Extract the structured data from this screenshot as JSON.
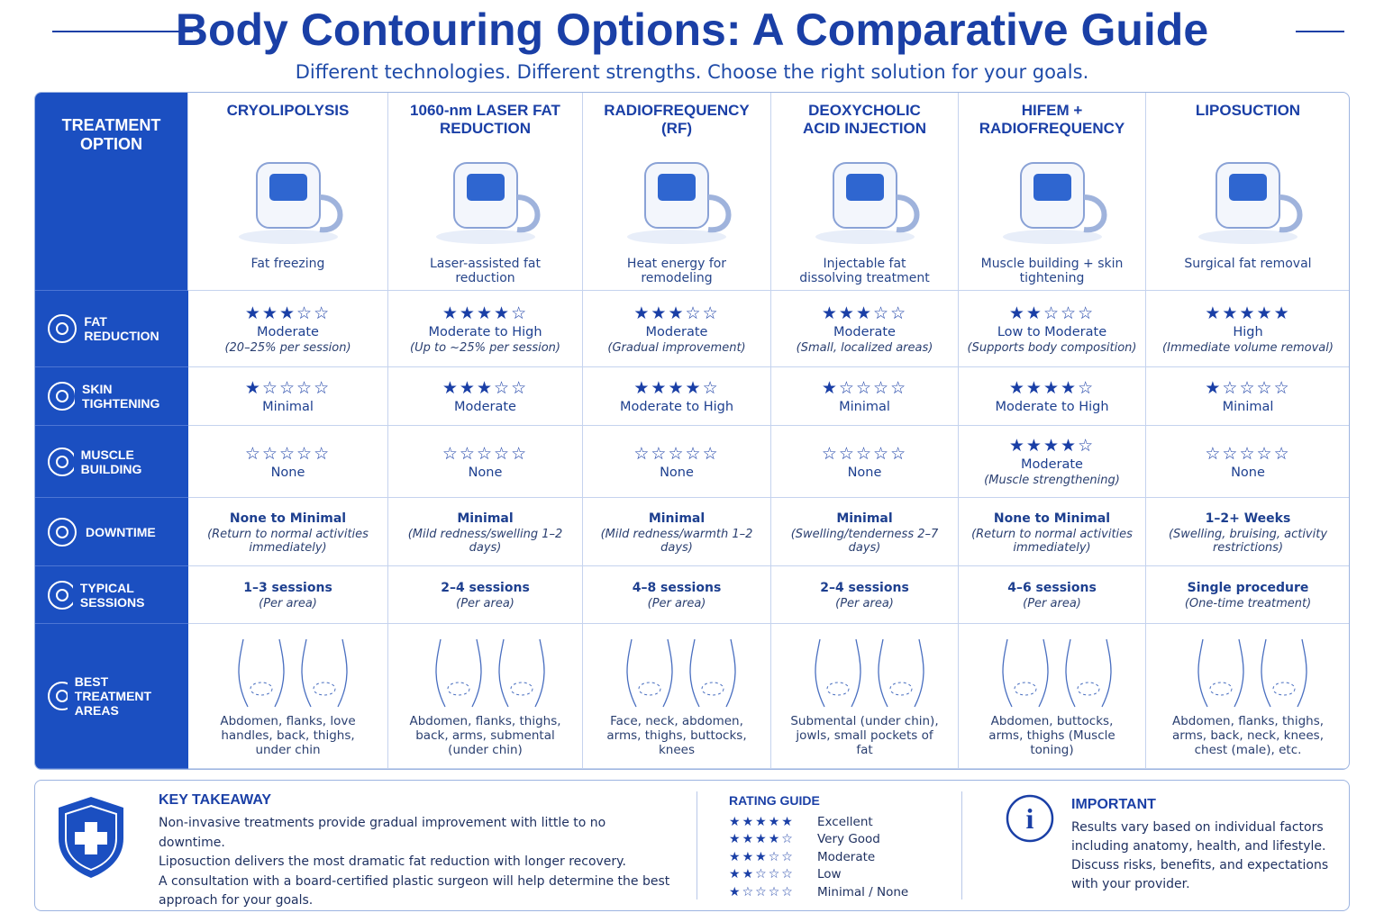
{
  "header": {
    "title": "Body Contouring Options: A Comparative Guide",
    "subtitle": "Different technologies. Different strengths. Choose the right solution for your goals."
  },
  "table": {
    "corner": "TREATMENT OPTION",
    "columns": [
      {
        "name": "CRYOLIPOLYSIS",
        "caption": "Fat freezing"
      },
      {
        "name": "1060-nm LASER FAT REDUCTION",
        "caption": "Laser-assisted fat reduction"
      },
      {
        "name": "RADIOFREQUENCY (RF)",
        "caption": "Heat energy for remodeling"
      },
      {
        "name": "DEOXYCHOLIC ACID INJECTION",
        "caption": "Injectable fat dissolving treatment"
      },
      {
        "name": "HIFEM + RADIOFREQUENCY",
        "caption": "Muscle building + skin tightening"
      },
      {
        "name": "LIPOSUCTION",
        "caption": "Surgical fat removal"
      }
    ],
    "rows": [
      {
        "label": "FAT REDUCTION",
        "cells": [
          {
            "stars": 3,
            "text": "Moderate",
            "note": "(20–25% per session)"
          },
          {
            "stars": 4,
            "text": "Moderate to High",
            "note": "(Up to ~25% per session)"
          },
          {
            "stars": 3,
            "text": "Moderate",
            "note": "(Gradual improvement)"
          },
          {
            "stars": 3,
            "text": "Moderate",
            "note": "(Small, localized areas)"
          },
          {
            "stars": 2,
            "text": "Low to Moderate",
            "note": "(Supports body composition)"
          },
          {
            "stars": 5,
            "text": "High",
            "note": "(Immediate volume removal)"
          }
        ]
      },
      {
        "label": "SKIN TIGHTENING",
        "cells": [
          {
            "stars": 1,
            "text": "Minimal"
          },
          {
            "stars": 3,
            "text": "Moderate"
          },
          {
            "stars": 4,
            "text": "Moderate to High"
          },
          {
            "stars": 1,
            "text": "Minimal"
          },
          {
            "stars": 4,
            "text": "Moderate to High"
          },
          {
            "stars": 1,
            "text": "Minimal"
          }
        ]
      },
      {
        "label": "MUSCLE BUILDING",
        "cells": [
          {
            "stars": 0,
            "text": "None"
          },
          {
            "stars": 0,
            "text": "None"
          },
          {
            "stars": 0,
            "text": "None"
          },
          {
            "stars": 0,
            "text": "None"
          },
          {
            "stars": 4,
            "text": "Moderate",
            "note": "(Muscle strengthening)"
          },
          {
            "stars": 0,
            "text": "None"
          }
        ]
      },
      {
        "label": "DOWNTIME",
        "cells": [
          {
            "text": "None to Minimal",
            "note": "(Return to normal activities immediately)"
          },
          {
            "text": "Minimal",
            "note": "(Mild redness/swelling 1–2 days)"
          },
          {
            "text": "Minimal",
            "note": "(Mild redness/warmth 1–2 days)"
          },
          {
            "text": "Minimal",
            "note": "(Swelling/tenderness 2–7 days)"
          },
          {
            "text": "None to Minimal",
            "note": "(Return to normal activities immediately)"
          },
          {
            "text": "1–2+ Weeks",
            "note": "(Swelling, bruising, activity restrictions)"
          }
        ]
      },
      {
        "label": "TYPICAL SESSIONS",
        "cells": [
          {
            "text": "1–3 sessions",
            "note": "(Per area)"
          },
          {
            "text": "2–4 sessions",
            "note": "(Per area)"
          },
          {
            "text": "4–8 sessions",
            "note": "(Per area)"
          },
          {
            "text": "2–4 sessions",
            "note": "(Per area)"
          },
          {
            "text": "4–6 sessions",
            "note": "(Per area)"
          },
          {
            "text": "Single procedure",
            "note": "(One-time treatment)"
          }
        ]
      },
      {
        "label": "BEST TREATMENT AREAS",
        "cells": [
          {
            "note": "Abdomen, flanks, love handles, back, thighs, under chin"
          },
          {
            "note": "Abdomen, flanks, thighs, back, arms, submental (under chin)"
          },
          {
            "note": "Face, neck, abdomen, arms, thighs, buttocks, knees"
          },
          {
            "note": "Submental (under chin), jowls, small pockets of fat"
          },
          {
            "note": "Abdomen, buttocks, arms, thighs (Muscle toning)"
          },
          {
            "note": "Abdomen, flanks, thighs, arms, back, neck, knees, chest (male), etc."
          }
        ]
      }
    ]
  },
  "takeaway": {
    "title": "KEY TAKEAWAY",
    "lines": [
      "Non-invasive treatments provide gradual improvement with little to no downtime.",
      "Liposuction delivers the most dramatic fat reduction with longer recovery.",
      "A consultation with a board-certified plastic surgeon will help determine the best approach for your goals."
    ]
  },
  "rating_guide": {
    "title": "RATING GUIDE",
    "levels": [
      {
        "stars": 5,
        "label": "Excellent"
      },
      {
        "stars": 4,
        "label": "Very Good"
      },
      {
        "stars": 3,
        "label": "Moderate"
      },
      {
        "stars": 2,
        "label": "Low"
      },
      {
        "stars": 1,
        "label": "Minimal / None"
      }
    ]
  },
  "important": {
    "title": "IMPORTANT",
    "lines": [
      "Results vary based on individual factors including anatomy, health, and lifestyle.",
      "Discuss risks, benefits, and expectations with your provider."
    ]
  }
}
